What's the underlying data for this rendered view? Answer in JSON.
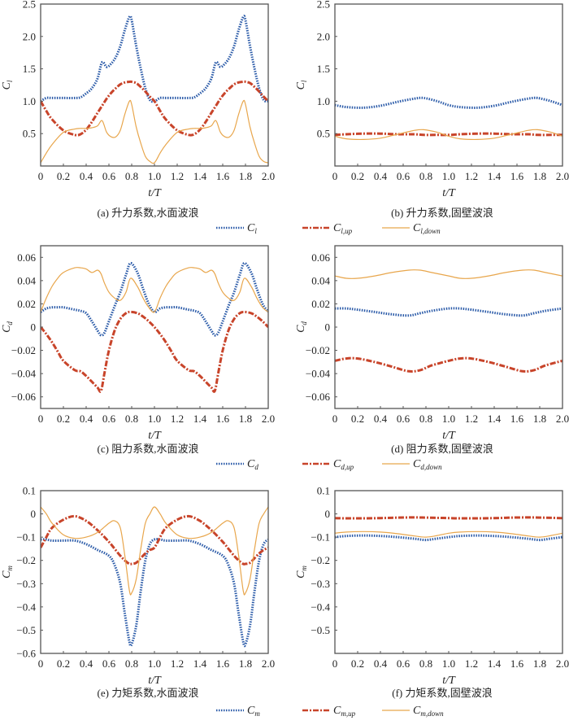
{
  "colors": {
    "total": "#2a5aa8",
    "up": "#c8442a",
    "down": "#e8a64c",
    "axis": "#555555"
  },
  "legends": [
    {
      "row": 0,
      "items": [
        {
          "base": "C",
          "sub": "l",
          "style": "dotted"
        },
        {
          "base": "C",
          "sub": "l,up",
          "style": "dashdot"
        },
        {
          "base": "C",
          "sub": "l,down",
          "style": "solid"
        }
      ]
    },
    {
      "row": 1,
      "items": [
        {
          "base": "C",
          "sub": "d",
          "style": "dotted"
        },
        {
          "base": "C",
          "sub": "d,up",
          "style": "dashdot"
        },
        {
          "base": "C",
          "sub": "d,down",
          "style": "solid"
        }
      ]
    },
    {
      "row": 2,
      "items": [
        {
          "base": "C",
          "sub": "m",
          "style": "dotted"
        },
        {
          "base": "C",
          "sub": "m,up",
          "style": "dashdot"
        },
        {
          "base": "C",
          "sub": "m,down",
          "style": "solid"
        }
      ]
    }
  ],
  "chart_data": [
    {
      "id": "a",
      "type": "line",
      "title": "(a) 升力系数,水面波浪",
      "xlabel": "t/T",
      "ylabel": "C_l",
      "ylabel_base": "C",
      "ylabel_sub": "l",
      "xlim": [
        0,
        2.0
      ],
      "ylim": [
        0,
        2.5
      ],
      "xticks": [
        "0",
        "0.2",
        "0.4",
        "0.6",
        "0.8",
        "1.0",
        "1.2",
        "1.4",
        "1.6",
        "1.8",
        "2.0"
      ],
      "yticks": [
        {
          "v": 0.5,
          "t": "0.5"
        },
        {
          "v": 1.0,
          "t": "1.0"
        },
        {
          "v": 1.5,
          "t": "1.5"
        },
        {
          "v": 2.0,
          "t": "2.0"
        },
        {
          "v": 2.5,
          "t": "2.5"
        }
      ],
      "x": [
        0,
        0.05,
        0.1,
        0.2,
        0.3,
        0.35,
        0.4,
        0.45,
        0.5,
        0.54,
        0.58,
        0.62,
        0.66,
        0.7,
        0.74,
        0.78,
        0.8,
        0.84,
        0.88,
        0.92,
        0.96,
        1.0
      ],
      "series": [
        {
          "name": "C_l",
          "style": "dotted",
          "values": [
            1.0,
            1.05,
            1.05,
            1.05,
            1.05,
            1.06,
            1.12,
            1.2,
            1.35,
            1.6,
            1.53,
            1.58,
            1.68,
            1.85,
            2.1,
            2.3,
            2.25,
            1.85,
            1.5,
            1.2,
            1.02,
            1.0
          ]
        },
        {
          "name": "C_l,up",
          "style": "dashdot",
          "values": [
            1.0,
            0.85,
            0.72,
            0.55,
            0.48,
            0.49,
            0.56,
            0.68,
            0.82,
            0.93,
            1.04,
            1.13,
            1.2,
            1.26,
            1.29,
            1.3,
            1.3,
            1.28,
            1.22,
            1.15,
            1.07,
            1.0
          ]
        },
        {
          "name": "C_l,down",
          "style": "solid",
          "values": [
            0.05,
            0.2,
            0.33,
            0.52,
            0.57,
            0.58,
            0.58,
            0.59,
            0.62,
            0.7,
            0.52,
            0.45,
            0.45,
            0.55,
            0.8,
            1.0,
            0.95,
            0.6,
            0.35,
            0.15,
            0.07,
            0.05
          ]
        }
      ]
    },
    {
      "id": "b",
      "type": "line",
      "title": "(b) 升力系数,固壁波浪",
      "xlabel": "t/T",
      "ylabel": "C_l",
      "ylabel_base": "C",
      "ylabel_sub": "l",
      "xlim": [
        0,
        2.0
      ],
      "ylim": [
        0,
        2.5
      ],
      "xticks": [
        "0",
        "0.2",
        "0.4",
        "0.6",
        "0.8",
        "1.0",
        "1.2",
        "1.4",
        "1.6",
        "1.8",
        "2.0"
      ],
      "yticks": [
        {
          "v": 0.5,
          "t": "0.5"
        },
        {
          "v": 1.0,
          "t": "1.0"
        },
        {
          "v": 1.5,
          "t": "1.5"
        },
        {
          "v": 2.0,
          "t": "2.0"
        },
        {
          "v": 2.5,
          "t": "2.5"
        }
      ],
      "x": [
        0,
        0.1,
        0.25,
        0.4,
        0.55,
        0.7,
        0.78,
        0.9,
        1.0
      ],
      "series": [
        {
          "name": "C_l",
          "style": "dotted",
          "values": [
            0.94,
            0.91,
            0.9,
            0.93,
            0.99,
            1.04,
            1.05,
            1.0,
            0.94
          ]
        },
        {
          "name": "C_l,up",
          "style": "dashdot",
          "values": [
            0.48,
            0.49,
            0.5,
            0.5,
            0.49,
            0.49,
            0.48,
            0.48,
            0.48
          ]
        },
        {
          "name": "C_l,down",
          "style": "solid",
          "values": [
            0.46,
            0.42,
            0.41,
            0.43,
            0.49,
            0.55,
            0.56,
            0.52,
            0.46
          ]
        }
      ]
    },
    {
      "id": "c",
      "type": "line",
      "title": "(c) 阻力系数,水面波浪",
      "xlabel": "t/T",
      "ylabel": "C_d",
      "ylabel_base": "C",
      "ylabel_sub": "d",
      "xlim": [
        0,
        2.0
      ],
      "ylim": [
        -0.07,
        0.07
      ],
      "xticks": [
        "0",
        "0.2",
        "0.4",
        "0.6",
        "0.8",
        "1.0",
        "1.2",
        "1.4",
        "1.6",
        "1.8",
        "2.0"
      ],
      "yticks": [
        {
          "v": -0.06,
          "t": "−0.06"
        },
        {
          "v": -0.04,
          "t": "−0.04"
        },
        {
          "v": -0.02,
          "t": "−0.02"
        },
        {
          "v": 0,
          "t": "0"
        },
        {
          "v": 0.02,
          "t": "0.02"
        },
        {
          "v": 0.04,
          "t": "0.04"
        },
        {
          "v": 0.06,
          "t": "0.06"
        }
      ],
      "x": [
        0,
        0.05,
        0.1,
        0.15,
        0.2,
        0.3,
        0.35,
        0.4,
        0.45,
        0.5,
        0.53,
        0.56,
        0.6,
        0.65,
        0.7,
        0.75,
        0.79,
        0.85,
        0.9,
        0.95,
        1.0
      ],
      "series": [
        {
          "name": "C_d",
          "style": "dotted",
          "values": [
            0.013,
            0.016,
            0.017,
            0.017,
            0.017,
            0.015,
            0.014,
            0.012,
            0.005,
            -0.003,
            -0.007,
            -0.005,
            0.005,
            0.018,
            0.03,
            0.045,
            0.055,
            0.047,
            0.033,
            0.02,
            0.013
          ]
        },
        {
          "name": "C_d,up",
          "style": "dashdot",
          "values": [
            0.0,
            -0.006,
            -0.013,
            -0.021,
            -0.029,
            -0.037,
            -0.038,
            -0.042,
            -0.047,
            -0.052,
            -0.055,
            -0.04,
            -0.02,
            -0.003,
            0.007,
            0.012,
            0.013,
            0.012,
            0.009,
            0.005,
            0.0
          ]
        },
        {
          "name": "C_d,down",
          "style": "solid",
          "values": [
            0.013,
            0.025,
            0.035,
            0.042,
            0.047,
            0.051,
            0.051,
            0.05,
            0.047,
            0.049,
            0.046,
            0.038,
            0.03,
            0.025,
            0.023,
            0.03,
            0.042,
            0.035,
            0.025,
            0.017,
            0.013
          ]
        }
      ]
    },
    {
      "id": "d",
      "type": "line",
      "title": "(d) 阻力系数,固壁波浪",
      "xlabel": "t/T",
      "ylabel": "C_d",
      "ylabel_base": "C",
      "ylabel_sub": "d",
      "xlim": [
        0,
        2.0
      ],
      "ylim": [
        -0.07,
        0.07
      ],
      "xticks": [
        "0",
        "0.2",
        "0.4",
        "0.6",
        "0.8",
        "1.0",
        "1.2",
        "1.4",
        "1.6",
        "1.8",
        "2.0"
      ],
      "yticks": [
        {
          "v": -0.06,
          "t": "−0.06"
        },
        {
          "v": -0.04,
          "t": "−0.04"
        },
        {
          "v": -0.02,
          "t": "−0.02"
        },
        {
          "v": 0,
          "t": "0"
        },
        {
          "v": 0.02,
          "t": "0.02"
        },
        {
          "v": 0.04,
          "t": "0.04"
        },
        {
          "v": 0.06,
          "t": "0.06"
        }
      ],
      "x": [
        0,
        0.1,
        0.2,
        0.35,
        0.5,
        0.65,
        0.75,
        0.85,
        1.0
      ],
      "series": [
        {
          "name": "C_d",
          "style": "dotted",
          "values": [
            0.016,
            0.016,
            0.015,
            0.013,
            0.011,
            0.01,
            0.012,
            0.014,
            0.016
          ]
        },
        {
          "name": "C_d,up",
          "style": "dashdot",
          "values": [
            -0.029,
            -0.027,
            -0.027,
            -0.03,
            -0.034,
            -0.038,
            -0.037,
            -0.033,
            -0.029
          ]
        },
        {
          "name": "C_d,down",
          "style": "solid",
          "values": [
            0.044,
            0.042,
            0.042,
            0.044,
            0.047,
            0.049,
            0.049,
            0.047,
            0.044
          ]
        }
      ]
    },
    {
      "id": "e",
      "type": "line",
      "title": "(e) 力矩系数,水面波浪",
      "xlabel": "t/T",
      "ylabel": "C_m",
      "ylabel_base": "C",
      "ylabel_sub": "m",
      "xlim": [
        0,
        2.0
      ],
      "ylim": [
        -0.6,
        0.1
      ],
      "xticks": [
        "0",
        "0.2",
        "0.4",
        "0.6",
        "0.8",
        "1.0",
        "1.2",
        "1.4",
        "1.6",
        "1.8",
        "2.0"
      ],
      "yticks": [
        {
          "v": -0.6,
          "t": "−0.6"
        },
        {
          "v": -0.5,
          "t": "−0.5"
        },
        {
          "v": -0.4,
          "t": "−0.4"
        },
        {
          "v": -0.3,
          "t": "−0.3"
        },
        {
          "v": -0.2,
          "t": "−0.2"
        },
        {
          "v": -0.1,
          "t": "−0.1"
        },
        {
          "v": 0,
          "t": "0"
        },
        {
          "v": 0.1,
          "t": "0.1"
        }
      ],
      "x": [
        0,
        0.05,
        0.1,
        0.2,
        0.3,
        0.4,
        0.5,
        0.6,
        0.65,
        0.7,
        0.74,
        0.78,
        0.8,
        0.84,
        0.88,
        0.92,
        0.96,
        1.0
      ],
      "series": [
        {
          "name": "C_m",
          "style": "dotted",
          "values": [
            -0.11,
            -0.11,
            -0.115,
            -0.115,
            -0.115,
            -0.13,
            -0.155,
            -0.18,
            -0.22,
            -0.3,
            -0.43,
            -0.55,
            -0.56,
            -0.48,
            -0.33,
            -0.2,
            -0.13,
            -0.11
          ]
        },
        {
          "name": "C_m,up",
          "style": "dashdot",
          "values": [
            -0.145,
            -0.1,
            -0.06,
            -0.025,
            -0.01,
            -0.03,
            -0.07,
            -0.12,
            -0.15,
            -0.18,
            -0.2,
            -0.215,
            -0.215,
            -0.21,
            -0.19,
            -0.17,
            -0.155,
            -0.145
          ]
        },
        {
          "name": "C_m,down",
          "style": "solid",
          "values": [
            0.03,
            0.0,
            -0.04,
            -0.09,
            -0.105,
            -0.1,
            -0.08,
            -0.04,
            -0.03,
            -0.06,
            -0.18,
            -0.33,
            -0.34,
            -0.28,
            -0.15,
            -0.04,
            0.0,
            0.03
          ]
        }
      ]
    },
    {
      "id": "f",
      "type": "line",
      "title": "(f) 力矩系数,固壁波浪",
      "xlabel": "t/T",
      "ylabel": "C_m",
      "ylabel_base": "C",
      "ylabel_sub": "m",
      "xlim": [
        0,
        2.0
      ],
      "ylim": [
        -0.6,
        0.1
      ],
      "xticks": [
        "0",
        "0.2",
        "0.4",
        "0.6",
        "0.8",
        "1.0",
        "1.2",
        "1.4",
        "1.6",
        "1.8",
        "2.0"
      ],
      "yticks": [
        {
          "v": -0.5,
          "t": "−0.5"
        },
        {
          "v": -0.4,
          "t": "−0.4"
        },
        {
          "v": -0.3,
          "t": "−0.3"
        },
        {
          "v": -0.2,
          "t": "−0.2"
        },
        {
          "v": -0.1,
          "t": "−0.1"
        },
        {
          "v": 0,
          "t": "0"
        },
        {
          "v": 0.1,
          "t": "0.1"
        }
      ],
      "x": [
        0,
        0.1,
        0.25,
        0.4,
        0.55,
        0.7,
        0.8,
        0.9,
        1.0
      ],
      "series": [
        {
          "name": "C_m",
          "style": "dotted",
          "values": [
            -0.1,
            -0.095,
            -0.093,
            -0.095,
            -0.1,
            -0.107,
            -0.112,
            -0.106,
            -0.1
          ]
        },
        {
          "name": "C_m,up",
          "style": "dashdot",
          "values": [
            -0.018,
            -0.019,
            -0.019,
            -0.018,
            -0.016,
            -0.015,
            -0.016,
            -0.017,
            -0.018
          ]
        },
        {
          "name": "C_m,down",
          "style": "solid",
          "values": [
            -0.083,
            -0.078,
            -0.076,
            -0.078,
            -0.085,
            -0.095,
            -0.1,
            -0.093,
            -0.083
          ]
        }
      ]
    }
  ]
}
